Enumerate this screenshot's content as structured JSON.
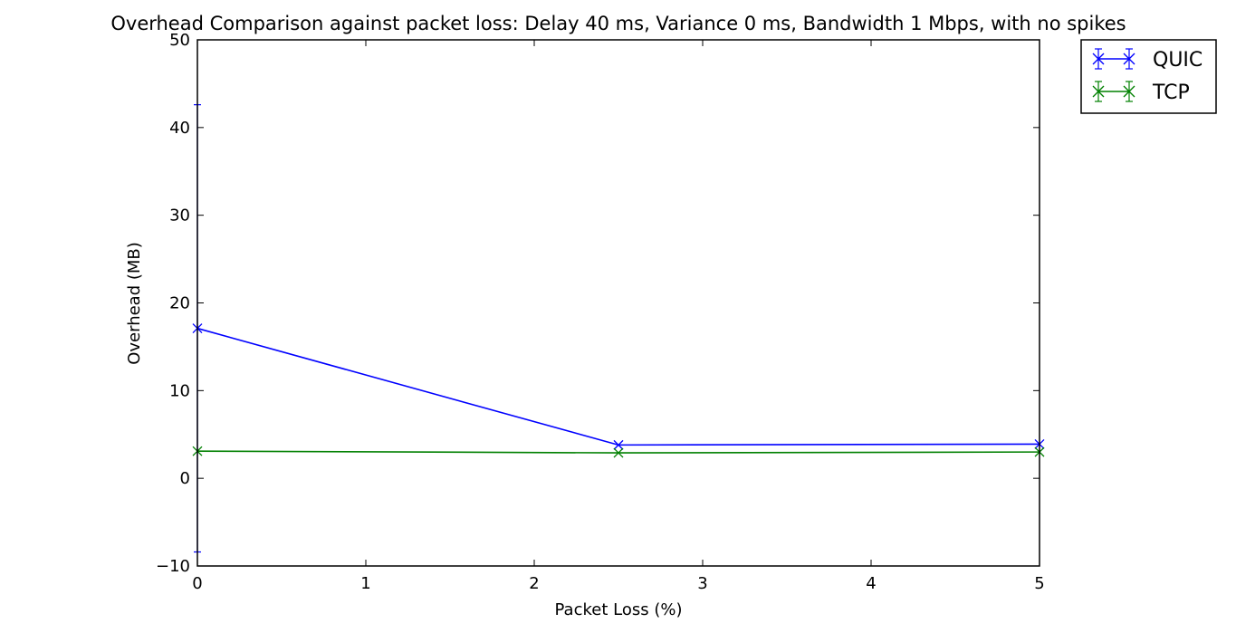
{
  "chart_data": {
    "type": "line",
    "title": "Overhead Comparison against packet loss: Delay 40 ms, Variance 0 ms, Bandwidth 1 Mbps, with no spikes",
    "xlabel": "Packet Loss (%)",
    "ylabel": "Overhead (MB)",
    "xlim": [
      0,
      5
    ],
    "ylim": [
      -10,
      50
    ],
    "xticks": [
      0,
      1,
      2,
      3,
      4,
      5
    ],
    "yticks": [
      -10,
      0,
      10,
      20,
      30,
      40,
      50
    ],
    "xtick_labels": [
      "0",
      "1",
      "2",
      "3",
      "4",
      "5"
    ],
    "ytick_labels": [
      "−10",
      "0",
      "10",
      "20",
      "30",
      "40",
      "50"
    ],
    "grid": false,
    "legend_position": "outside top-right",
    "series": [
      {
        "name": "QUIC",
        "color": "#0000ff",
        "marker": "x",
        "x": [
          0,
          2.5,
          5
        ],
        "y": [
          17.1,
          3.8,
          3.9
        ],
        "yerr_low": [
          -8.4,
          3.8,
          3.9
        ],
        "yerr_high": [
          42.6,
          3.8,
          3.9
        ]
      },
      {
        "name": "TCP",
        "color": "#008000",
        "marker": "x",
        "x": [
          0,
          2.5,
          5
        ],
        "y": [
          3.1,
          2.9,
          3.0
        ],
        "yerr_low": [
          3.1,
          2.9,
          3.0
        ],
        "yerr_high": [
          3.1,
          2.9,
          3.0
        ]
      }
    ]
  }
}
